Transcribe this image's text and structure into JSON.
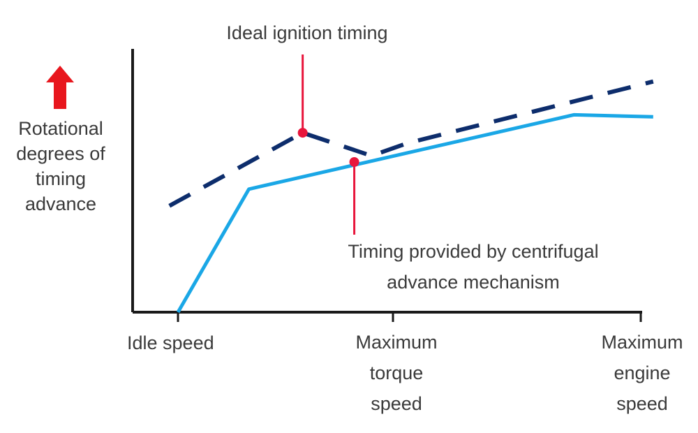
{
  "chart_data": {
    "type": "line",
    "ylabel": "Rotational degrees of timing advance",
    "ylabel_lines": [
      "Rotational",
      "degrees of",
      "timing",
      "advance"
    ],
    "x_ticks": [
      {
        "x": 0,
        "lines": [
          "Idle speed"
        ]
      },
      {
        "x": 1,
        "lines": [
          "Maximum",
          "torque",
          "speed"
        ]
      },
      {
        "x": 2,
        "lines": [
          "Maximum",
          "engine",
          "speed"
        ]
      }
    ],
    "xlim": [
      -0.22,
      2.0
    ],
    "ylim": [
      0,
      10
    ],
    "series": [
      {
        "name": "Ideal ignition timing",
        "style": "dashed",
        "color": "#0d2d6c",
        "x": [
          -0.04,
          0.58,
          0.9,
          1.06,
          2.05
        ],
        "y": [
          4.15,
          7.0,
          6.1,
          6.6,
          9.0
        ]
      },
      {
        "name": "Timing provided by centrifugal advance mechanism",
        "style": "solid",
        "color": "#1aa7e6",
        "x": [
          0.0,
          0.33,
          1.73,
          2.05
        ],
        "y": [
          0.0,
          4.8,
          7.7,
          7.62
        ]
      }
    ],
    "annotations": [
      {
        "text": "Ideal ignition timing",
        "lines": [
          "Ideal ignition timing"
        ],
        "point": [
          0.58,
          7.0
        ]
      },
      {
        "text": "Timing provided by centrifugal advance mechanism",
        "lines": [
          "Timing provided by centrifugal",
          "advance mechanism"
        ],
        "point": [
          0.82,
          5.86
        ]
      }
    ],
    "colors": {
      "axis": "#1a1a1a",
      "marker": "#e8163c",
      "arrow": "#e8161d"
    }
  }
}
